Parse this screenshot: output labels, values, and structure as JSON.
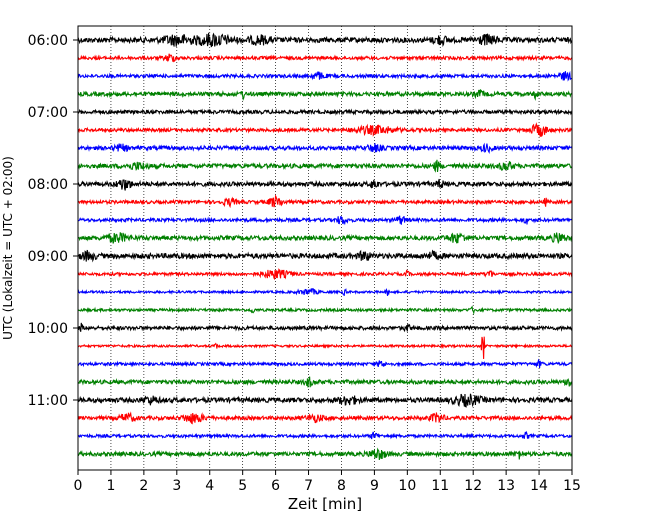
{
  "chart_data": {
    "type": "line",
    "subtype": "helicorder",
    "xlabel": "Zeit  [min]",
    "ylabel": "UTC (Lokalzeit = UTC + 02:00)",
    "xlim": [
      0,
      15
    ],
    "x_ticks": [
      0,
      1,
      2,
      3,
      4,
      5,
      6,
      7,
      8,
      9,
      10,
      11,
      12,
      13,
      14,
      15
    ],
    "x_tick_labels": [
      "0",
      "1",
      "2",
      "3",
      "4",
      "5",
      "6",
      "7",
      "8",
      "9",
      "10",
      "11",
      "12",
      "13",
      "14",
      "15"
    ],
    "y_tick_labels": [
      "06:00",
      "07:00",
      "08:00",
      "09:00",
      "10:00",
      "11:00"
    ],
    "vertical_grid": "dotted",
    "trace_colors": [
      "#000000",
      "#ff0000",
      "#0000ff",
      "#008000"
    ],
    "traces": [
      {
        "start": "06:00",
        "color": "#000000",
        "amp": 0.28,
        "events": [
          {
            "t": 3.0,
            "a": 0.5,
            "w": 0.4
          },
          {
            "t": 4.1,
            "a": 0.6,
            "w": 0.5
          },
          {
            "t": 5.5,
            "a": 0.4,
            "w": 0.3
          },
          {
            "t": 11.0,
            "a": 0.4,
            "w": 0.2
          },
          {
            "t": 12.4,
            "a": 0.45,
            "w": 0.3
          }
        ]
      },
      {
        "start": "06:15",
        "color": "#ff0000",
        "amp": 0.18,
        "events": [
          {
            "t": 2.8,
            "a": 0.4,
            "w": 0.15
          }
        ]
      },
      {
        "start": "06:30",
        "color": "#0000ff",
        "amp": 0.18,
        "events": [
          {
            "t": 7.3,
            "a": 0.35,
            "w": 0.2
          },
          {
            "t": 14.8,
            "a": 0.4,
            "w": 0.2
          }
        ]
      },
      {
        "start": "06:45",
        "color": "#008000",
        "amp": 0.22,
        "events": [
          {
            "t": 5.0,
            "a": 0.5,
            "w": 0.05
          },
          {
            "t": 12.2,
            "a": 0.3,
            "w": 0.15
          },
          {
            "t": 13.9,
            "a": 0.5,
            "w": 0.05
          }
        ]
      },
      {
        "start": "07:00",
        "color": "#000000",
        "amp": 0.2,
        "events": []
      },
      {
        "start": "07:15",
        "color": "#ff0000",
        "amp": 0.18,
        "events": [
          {
            "t": 9.0,
            "a": 0.4,
            "w": 0.6
          },
          {
            "t": 14.0,
            "a": 0.6,
            "w": 0.25
          }
        ]
      },
      {
        "start": "07:30",
        "color": "#0000ff",
        "amp": 0.22,
        "events": [
          {
            "t": 1.3,
            "a": 0.3,
            "w": 0.2
          },
          {
            "t": 9.0,
            "a": 0.35,
            "w": 0.2
          },
          {
            "t": 12.4,
            "a": 0.35,
            "w": 0.15
          }
        ]
      },
      {
        "start": "07:45",
        "color": "#008000",
        "amp": 0.24,
        "events": [
          {
            "t": 1.8,
            "a": 0.3,
            "w": 0.3
          },
          {
            "t": 10.9,
            "a": 0.5,
            "w": 0.1
          },
          {
            "t": 13.0,
            "a": 0.4,
            "w": 0.2
          }
        ]
      },
      {
        "start": "08:00",
        "color": "#000000",
        "amp": 0.24,
        "events": [
          {
            "t": 1.4,
            "a": 0.55,
            "w": 0.2
          },
          {
            "t": 9.0,
            "a": 0.5,
            "w": 0.1
          },
          {
            "t": 11.0,
            "a": 0.4,
            "w": 0.1
          }
        ]
      },
      {
        "start": "08:15",
        "color": "#ff0000",
        "amp": 0.18,
        "events": [
          {
            "t": 4.6,
            "a": 0.35,
            "w": 0.2
          },
          {
            "t": 6.0,
            "a": 0.55,
            "w": 0.2
          },
          {
            "t": 14.2,
            "a": 0.4,
            "w": 0.05
          }
        ]
      },
      {
        "start": "08:30",
        "color": "#0000ff",
        "amp": 0.18,
        "events": [
          {
            "t": 8.0,
            "a": 0.4,
            "w": 0.15
          },
          {
            "t": 9.8,
            "a": 0.4,
            "w": 0.15
          },
          {
            "t": 13.6,
            "a": 0.5,
            "w": 0.05
          }
        ]
      },
      {
        "start": "08:45",
        "color": "#008000",
        "amp": 0.24,
        "events": [
          {
            "t": 1.2,
            "a": 0.45,
            "w": 0.3
          },
          {
            "t": 11.5,
            "a": 0.45,
            "w": 0.25
          },
          {
            "t": 14.6,
            "a": 0.45,
            "w": 0.2
          }
        ]
      },
      {
        "start": "09:00",
        "color": "#000000",
        "amp": 0.28,
        "events": [
          {
            "t": 0.3,
            "a": 0.4,
            "w": 0.2
          },
          {
            "t": 8.7,
            "a": 0.5,
            "w": 0.15
          },
          {
            "t": 10.8,
            "a": 0.3,
            "w": 0.2
          }
        ]
      },
      {
        "start": "09:15",
        "color": "#ff0000",
        "amp": 0.16,
        "events": [
          {
            "t": 6.0,
            "a": 0.45,
            "w": 0.4
          },
          {
            "t": 10.0,
            "a": 0.35,
            "w": 0.05
          },
          {
            "t": 12.5,
            "a": 0.4,
            "w": 0.1
          }
        ]
      },
      {
        "start": "09:30",
        "color": "#0000ff",
        "amp": 0.12,
        "events": [
          {
            "t": 7.0,
            "a": 0.3,
            "w": 0.3
          },
          {
            "t": 8.1,
            "a": 0.35,
            "w": 0.05
          },
          {
            "t": 9.4,
            "a": 0.35,
            "w": 0.05
          }
        ]
      },
      {
        "start": "09:45",
        "color": "#008000",
        "amp": 0.14,
        "events": [
          {
            "t": 5.3,
            "a": 0.3,
            "w": 0.05
          },
          {
            "t": 12.0,
            "a": 0.25,
            "w": 0.1
          }
        ]
      },
      {
        "start": "10:00",
        "color": "#000000",
        "amp": 0.2,
        "events": [
          {
            "t": 0.1,
            "a": 0.4,
            "w": 0.05
          },
          {
            "t": 10.0,
            "a": 0.3,
            "w": 0.1
          }
        ]
      },
      {
        "start": "10:15",
        "color": "#ff0000",
        "amp": 0.12,
        "events": [
          {
            "t": 4.2,
            "a": 0.3,
            "w": 0.05
          },
          {
            "t": 12.3,
            "a": 1.9,
            "w": 0.04
          }
        ]
      },
      {
        "start": "10:30",
        "color": "#0000ff",
        "amp": 0.16,
        "events": [
          {
            "t": 9.2,
            "a": 0.4,
            "w": 0.1
          },
          {
            "t": 14.0,
            "a": 0.3,
            "w": 0.1
          }
        ]
      },
      {
        "start": "10:45",
        "color": "#008000",
        "amp": 0.22,
        "events": [
          {
            "t": 7.0,
            "a": 0.5,
            "w": 0.1
          },
          {
            "t": 14.9,
            "a": 0.5,
            "w": 0.1
          }
        ]
      },
      {
        "start": "11:00",
        "color": "#000000",
        "amp": 0.26,
        "events": [
          {
            "t": 2.2,
            "a": 0.35,
            "w": 0.2
          },
          {
            "t": 8.2,
            "a": 0.4,
            "w": 0.3
          },
          {
            "t": 11.8,
            "a": 0.5,
            "w": 0.4
          }
        ]
      },
      {
        "start": "11:15",
        "color": "#ff0000",
        "amp": 0.2,
        "events": [
          {
            "t": 1.5,
            "a": 0.45,
            "w": 0.2
          },
          {
            "t": 3.5,
            "a": 0.5,
            "w": 0.3
          },
          {
            "t": 7.2,
            "a": 0.35,
            "w": 0.25
          },
          {
            "t": 10.9,
            "a": 0.45,
            "w": 0.2
          }
        ]
      },
      {
        "start": "11:30",
        "color": "#0000ff",
        "amp": 0.16,
        "events": [
          {
            "t": 9.0,
            "a": 0.4,
            "w": 0.1
          },
          {
            "t": 13.6,
            "a": 0.3,
            "w": 0.1
          }
        ]
      },
      {
        "start": "11:45",
        "color": "#008000",
        "amp": 0.22,
        "events": [
          {
            "t": 9.1,
            "a": 0.5,
            "w": 0.25
          },
          {
            "t": 13.4,
            "a": 0.4,
            "w": 0.1
          }
        ]
      }
    ]
  }
}
